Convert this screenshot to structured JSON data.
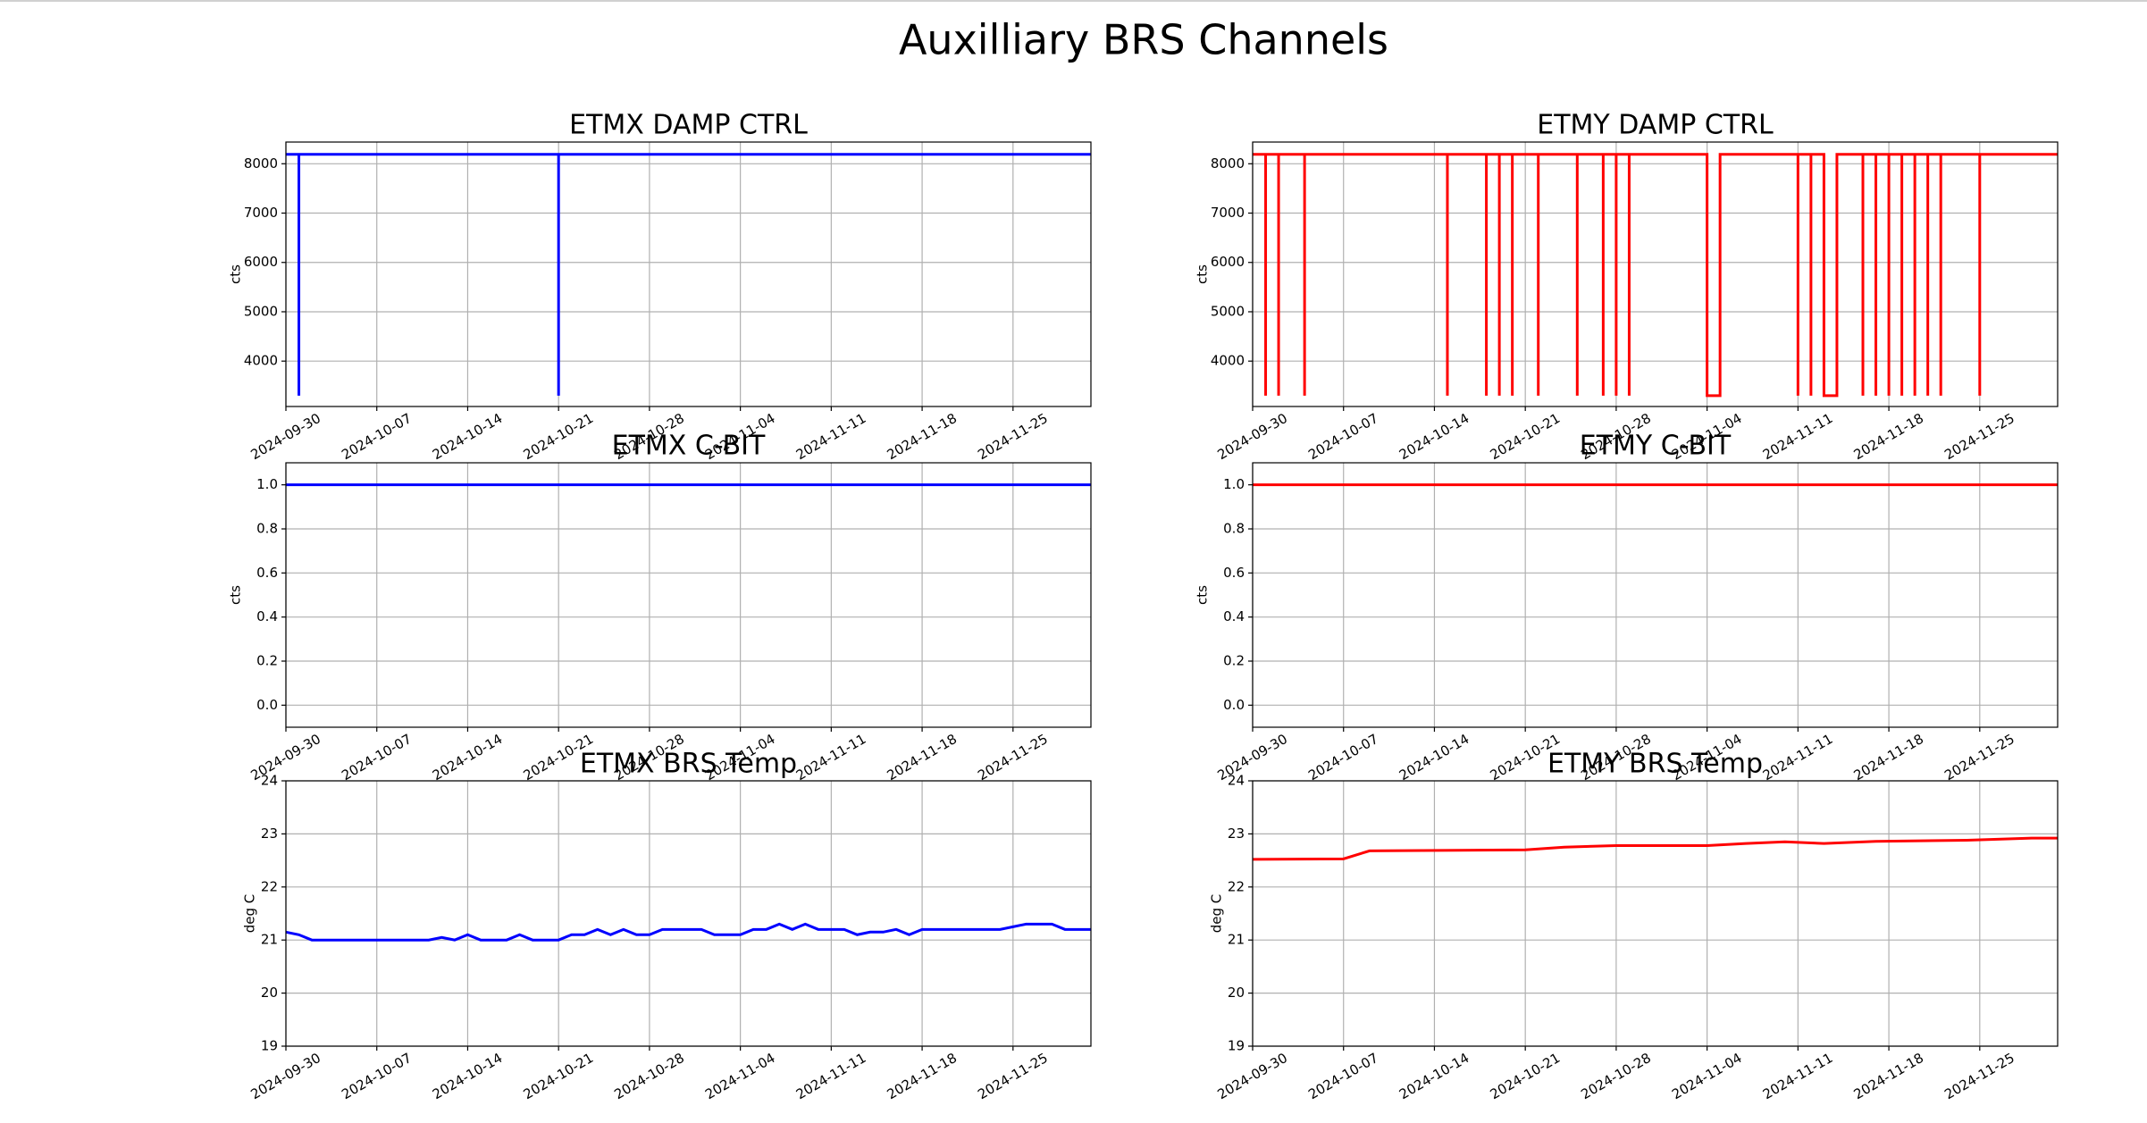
{
  "title": "Auxilliary BRS Channels",
  "chart_data": [
    {
      "type": "line",
      "title": "ETMX DAMP CTRL",
      "ylabel": "cts",
      "color": "#0000ff",
      "x": [
        "2024-09-30",
        "2024-10-01",
        "2024-10-01",
        "2024-10-01",
        "2024-10-21",
        "2024-10-21",
        "2024-10-21",
        "2024-12-01"
      ],
      "values": [
        8192,
        8192,
        3300,
        8192,
        8192,
        3300,
        8192,
        8192
      ],
      "xlim": [
        "2024-09-30",
        "2024-12-01"
      ],
      "xticks": [
        "2024-09-30",
        "2024-10-07",
        "2024-10-14",
        "2024-10-21",
        "2024-10-28",
        "2024-11-04",
        "2024-11-11",
        "2024-11-18",
        "2024-11-25"
      ],
      "ylim": [
        3080,
        8440
      ],
      "yticks": [
        4000,
        5000,
        6000,
        7000,
        8000
      ],
      "grid": true
    },
    {
      "type": "line",
      "title": "ETMY DAMP CTRL",
      "ylabel": "cts",
      "color": "#ff0000",
      "x": [
        "2024-09-30",
        "2024-10-01",
        "2024-10-01",
        "2024-10-01",
        "2024-10-02",
        "2024-10-02",
        "2024-10-02",
        "2024-10-04",
        "2024-10-04",
        "2024-10-04",
        "2024-10-15",
        "2024-10-15",
        "2024-10-15",
        "2024-10-18",
        "2024-10-18",
        "2024-10-18",
        "2024-10-19",
        "2024-10-19",
        "2024-10-19",
        "2024-10-20",
        "2024-10-20",
        "2024-10-20",
        "2024-10-22",
        "2024-10-22",
        "2024-10-22",
        "2024-10-25",
        "2024-10-25",
        "2024-10-25",
        "2024-10-27",
        "2024-10-27",
        "2024-10-27",
        "2024-10-28",
        "2024-10-28",
        "2024-10-28",
        "2024-10-29",
        "2024-10-29",
        "2024-10-29",
        "2024-11-04",
        "2024-11-04",
        "2024-11-05",
        "2024-11-05",
        "2024-11-11",
        "2024-11-11",
        "2024-11-11",
        "2024-11-12",
        "2024-11-12",
        "2024-11-12",
        "2024-11-13",
        "2024-11-13",
        "2024-11-14",
        "2024-11-14",
        "2024-11-16",
        "2024-11-16",
        "2024-11-16",
        "2024-11-17",
        "2024-11-17",
        "2024-11-17",
        "2024-11-18",
        "2024-11-18",
        "2024-11-18",
        "2024-11-19",
        "2024-11-19",
        "2024-11-19",
        "2024-11-20",
        "2024-11-20",
        "2024-11-20",
        "2024-11-21",
        "2024-11-21",
        "2024-11-21",
        "2024-11-22",
        "2024-11-22",
        "2024-11-22",
        "2024-11-25",
        "2024-11-25",
        "2024-11-25",
        "2024-12-01"
      ],
      "values": [
        8192,
        8192,
        3300,
        8192,
        8192,
        3300,
        8192,
        8192,
        3300,
        8192,
        8192,
        3300,
        8192,
        8192,
        3300,
        8192,
        8192,
        3300,
        8192,
        8192,
        3300,
        8192,
        8192,
        3300,
        8192,
        8192,
        3300,
        8192,
        8192,
        3300,
        8192,
        8192,
        3300,
        8192,
        8192,
        3300,
        8192,
        8192,
        3300,
        3300,
        8192,
        8192,
        3300,
        8192,
        8192,
        3300,
        8192,
        8192,
        3300,
        3300,
        8192,
        8192,
        3300,
        8192,
        8192,
        3300,
        8192,
        8192,
        3300,
        8192,
        8192,
        3300,
        8192,
        8192,
        3300,
        8192,
        8192,
        3300,
        8192,
        8192,
        3300,
        8192,
        8192,
        3300,
        8192,
        8192
      ],
      "xlim": [
        "2024-09-30",
        "2024-12-01"
      ],
      "xticks": [
        "2024-09-30",
        "2024-10-07",
        "2024-10-14",
        "2024-10-21",
        "2024-10-28",
        "2024-11-04",
        "2024-11-11",
        "2024-11-18",
        "2024-11-25"
      ],
      "ylim": [
        3080,
        8440
      ],
      "yticks": [
        4000,
        5000,
        6000,
        7000,
        8000
      ],
      "grid": true
    },
    {
      "type": "line",
      "title": "ETMX C-BIT",
      "ylabel": "cts",
      "color": "#0000ff",
      "x": [
        "2024-09-30",
        "2024-12-01"
      ],
      "values": [
        1,
        1
      ],
      "xlim": [
        "2024-09-30",
        "2024-12-01"
      ],
      "xticks": [
        "2024-09-30",
        "2024-10-07",
        "2024-10-14",
        "2024-10-21",
        "2024-10-28",
        "2024-11-04",
        "2024-11-11",
        "2024-11-18",
        "2024-11-25"
      ],
      "ylim": [
        -0.1,
        1.1
      ],
      "yticks": [
        {
          "value": 0,
          "label": "0.0"
        },
        0.2,
        0.4,
        0.6,
        0.8,
        {
          "value": 1,
          "label": "1.0"
        }
      ],
      "grid": true
    },
    {
      "type": "line",
      "title": "ETMY C-BIT",
      "ylabel": "cts",
      "color": "#ff0000",
      "x": [
        "2024-09-30",
        "2024-12-01"
      ],
      "values": [
        1,
        1
      ],
      "xlim": [
        "2024-09-30",
        "2024-12-01"
      ],
      "xticks": [
        "2024-09-30",
        "2024-10-07",
        "2024-10-14",
        "2024-10-21",
        "2024-10-28",
        "2024-11-04",
        "2024-11-11",
        "2024-11-18",
        "2024-11-25"
      ],
      "ylim": [
        -0.1,
        1.1
      ],
      "yticks": [
        {
          "value": 0,
          "label": "0.0"
        },
        0.2,
        0.4,
        0.6,
        0.8,
        {
          "value": 1,
          "label": "1.0"
        }
      ],
      "grid": true
    },
    {
      "type": "line",
      "title": "ETMX BRS Temp",
      "ylabel": "deg C",
      "color": "#0000ff",
      "x": [
        "2024-09-30",
        "2024-10-01",
        "2024-10-02",
        "2024-10-03",
        "2024-10-04",
        "2024-10-05",
        "2024-10-06",
        "2024-10-07",
        "2024-10-08",
        "2024-10-09",
        "2024-10-10",
        "2024-10-11",
        "2024-10-12",
        "2024-10-13",
        "2024-10-14",
        "2024-10-15",
        "2024-10-16",
        "2024-10-17",
        "2024-10-18",
        "2024-10-19",
        "2024-10-20",
        "2024-10-21",
        "2024-10-22",
        "2024-10-23",
        "2024-10-24",
        "2024-10-25",
        "2024-10-26",
        "2024-10-27",
        "2024-10-28",
        "2024-10-29",
        "2024-10-30",
        "2024-10-31",
        "2024-11-01",
        "2024-11-02",
        "2024-11-03",
        "2024-11-04",
        "2024-11-05",
        "2024-11-06",
        "2024-11-07",
        "2024-11-08",
        "2024-11-09",
        "2024-11-10",
        "2024-11-11",
        "2024-11-12",
        "2024-11-13",
        "2024-11-14",
        "2024-11-15",
        "2024-11-16",
        "2024-11-17",
        "2024-11-18",
        "2024-11-19",
        "2024-11-20",
        "2024-11-21",
        "2024-11-22",
        "2024-11-23",
        "2024-11-24",
        "2024-11-25",
        "2024-11-26",
        "2024-11-27",
        "2024-11-28",
        "2024-11-29",
        "2024-11-30",
        "2024-12-01"
      ],
      "values": [
        21.15,
        21.1,
        21.0,
        21.0,
        21.0,
        21.0,
        21.0,
        21.0,
        21.0,
        21.0,
        21.0,
        21.0,
        21.05,
        21.0,
        21.1,
        21.0,
        21.0,
        21.0,
        21.1,
        21.0,
        21.0,
        21.0,
        21.1,
        21.1,
        21.2,
        21.1,
        21.2,
        21.1,
        21.1,
        21.2,
        21.2,
        21.2,
        21.2,
        21.1,
        21.1,
        21.1,
        21.2,
        21.2,
        21.3,
        21.2,
        21.3,
        21.2,
        21.2,
        21.2,
        21.1,
        21.15,
        21.15,
        21.2,
        21.1,
        21.2,
        21.2,
        21.2,
        21.2,
        21.2,
        21.2,
        21.2,
        21.25,
        21.3,
        21.3,
        21.3,
        21.2,
        21.2,
        21.2
      ],
      "xlim": [
        "2024-09-30",
        "2024-12-01"
      ],
      "xticks": [
        "2024-09-30",
        "2024-10-07",
        "2024-10-14",
        "2024-10-21",
        "2024-10-28",
        "2024-11-04",
        "2024-11-11",
        "2024-11-18",
        "2024-11-25"
      ],
      "ylim": [
        19,
        24
      ],
      "yticks": [
        19,
        20,
        21,
        22,
        23,
        24
      ],
      "grid": true
    },
    {
      "type": "line",
      "title": "ETMY BRS Temp",
      "ylabel": "deg C",
      "color": "#ff0000",
      "x": [
        "2024-09-30",
        "2024-10-07",
        "2024-10-09",
        "2024-10-21",
        "2024-10-24",
        "2024-10-28",
        "2024-11-04",
        "2024-11-07",
        "2024-11-10",
        "2024-11-13",
        "2024-11-17",
        "2024-11-24",
        "2024-11-29",
        "2024-12-01"
      ],
      "values": [
        22.52,
        22.53,
        22.68,
        22.7,
        22.75,
        22.78,
        22.78,
        22.82,
        22.85,
        22.82,
        22.86,
        22.88,
        22.92,
        22.92
      ],
      "xlim": [
        "2024-09-30",
        "2024-12-01"
      ],
      "xticks": [
        "2024-09-30",
        "2024-10-07",
        "2024-10-14",
        "2024-10-21",
        "2024-10-28",
        "2024-11-04",
        "2024-11-11",
        "2024-11-18",
        "2024-11-25"
      ],
      "ylim": [
        19,
        24
      ],
      "yticks": [
        19,
        20,
        21,
        22,
        23,
        24
      ],
      "grid": true
    }
  ]
}
